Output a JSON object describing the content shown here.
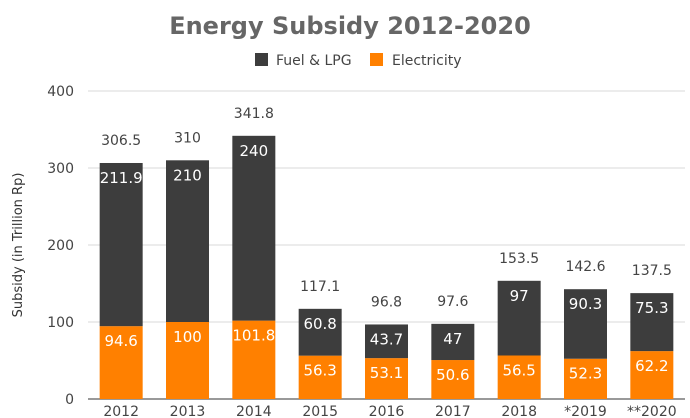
{
  "chart_data": {
    "type": "bar",
    "stacked": true,
    "title": "Energy Subsidy 2012-2020",
    "xlabel": "",
    "ylabel": "Subsidy (in Trillion Rp)",
    "ylim": [
      0,
      400
    ],
    "yticks": [
      "0",
      "100",
      "200",
      "300",
      "400"
    ],
    "grid": true,
    "legend_position": "top",
    "categories": [
      "2012",
      "2013",
      "2014",
      "2015",
      "2016",
      "2017",
      "2018",
      "*2019",
      "**2020"
    ],
    "series": [
      {
        "name": "Electricity",
        "color": "#ff8000",
        "values": [
          94.6,
          100,
          101.8,
          56.3,
          53.1,
          50.6,
          56.5,
          52.3,
          62.2
        ],
        "labels": [
          "94.6",
          "100",
          "101.8",
          "56.3",
          "53.1",
          "50.6",
          "56.5",
          "52.3",
          "62.2"
        ]
      },
      {
        "name": "Fuel & LPG",
        "color": "#3d3d3d",
        "values": [
          211.9,
          210,
          240,
          60.8,
          43.7,
          47,
          97,
          90.3,
          75.3
        ],
        "labels": [
          "211.9",
          "210",
          "240",
          "60.8",
          "43.7",
          "47",
          "97",
          "90.3",
          "75.3"
        ]
      }
    ],
    "totals": [
      306.5,
      310,
      341.8,
      117.1,
      96.8,
      97.6,
      153.5,
      142.6,
      137.5
    ],
    "total_labels": [
      "306.5",
      "310",
      "341.8",
      "117.1",
      "96.8",
      "97.6",
      "153.5",
      "142.6",
      "137.5"
    ],
    "legend_order": [
      "Fuel & LPG",
      "Electricity"
    ]
  }
}
